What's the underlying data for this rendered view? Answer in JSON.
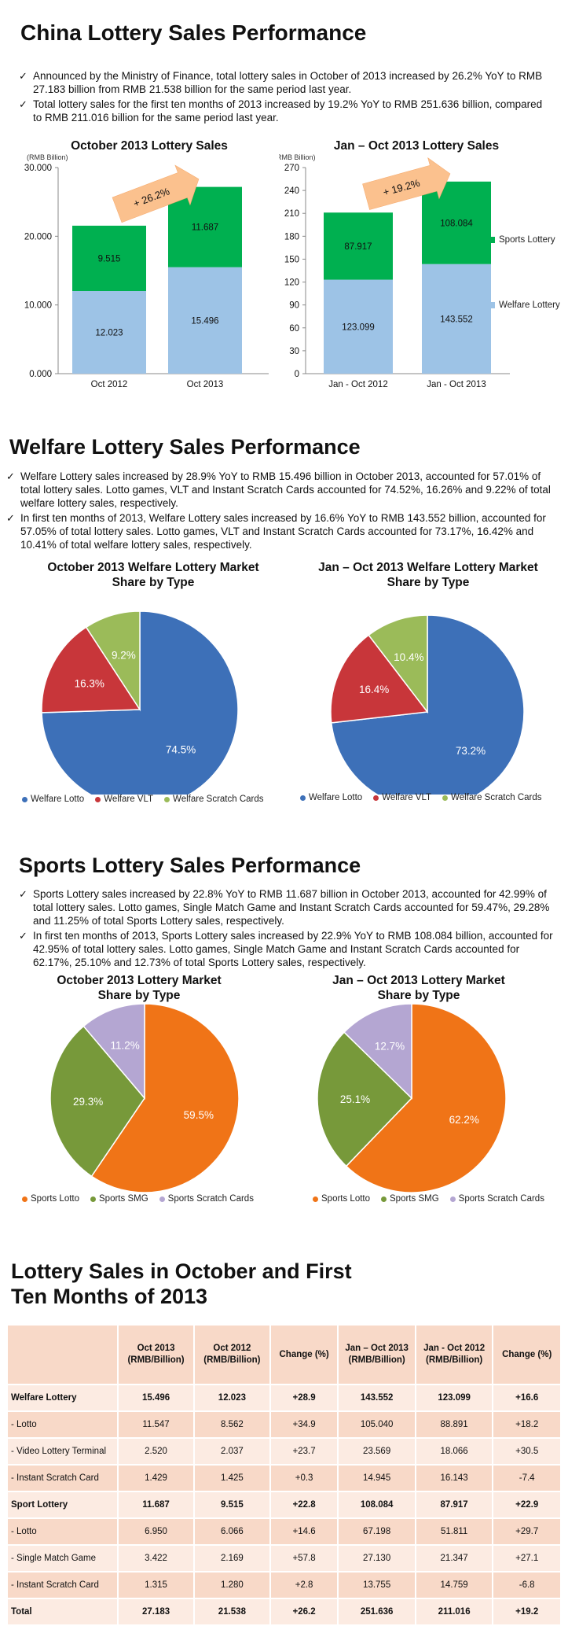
{
  "colors": {
    "sports_green": "#00b050",
    "welfare_blue": "#9dc3e6",
    "arrow_orange": "#fbc18e",
    "pie_blue": "#3d70b8",
    "pie_red": "#c8363a",
    "pie_green": "#9bbb59",
    "pie_orange": "#f07417",
    "pie_olive": "#77993a",
    "pie_lilac": "#b4a6d2",
    "table_header": "#f8d9c8"
  },
  "s1": {
    "title": "China Lottery Sales Performance",
    "bullets": [
      "Announced by the Ministry of Finance, total lottery sales in October of 2013 increased by 26.2% YoY to RMB 27.183 billion from RMB 21.538 billion for the same period last year.",
      "Total lottery sales for the first ten months of 2013 increased by 19.2% YoY to RMB 251.636 billion, compared to RMB 211.016 billion for the same period last year."
    ]
  },
  "s2": {
    "title": "Welfare Lottery Sales Performance",
    "bullets": [
      "Welfare Lottery sales increased by 28.9% YoY to RMB 15.496 billion in October 2013, accounted for 57.01% of total lottery sales. Lotto games, VLT and Instant Scratch Cards accounted for 74.52%, 16.26% and 9.22% of total welfare lottery sales, respectively.",
      "In first ten months of 2013, Welfare Lottery sales increased by 16.6% YoY to RMB 143.552 billion, accounted for 57.05% of total lottery sales. Lotto games, VLT and Instant Scratch Cards accounted for 73.17%, 16.42% and 10.41% of total welfare lottery sales, respectively."
    ]
  },
  "s3": {
    "title": "Sports Lottery Sales Performance",
    "bullets": [
      "Sports Lottery sales increased by 22.8% YoY to RMB 11.687 billion in October 2013, accounted for 42.99% of total lottery sales. Lotto games, Single Match Game and Instant Scratch Cards accounted for 59.47%, 29.28% and 11.25% of total Sports Lottery sales, respectively.",
      "In first ten months of 2013, Sports Lottery sales increased by 22.9% YoY to RMB 108.084 billion, accounted for 42.95% of total lottery sales. Lotto games, Single Match Game and Instant Scratch Cards accounted for 62.17%, 25.10% and 12.73% of total Sports Lottery sales, respectively."
    ]
  },
  "s4": {
    "title_line1": "Lottery Sales in October and First",
    "title_line2": "Ten Months of 2013"
  },
  "chart_data": [
    {
      "type": "bar",
      "stacked": true,
      "title": "October 2013 Lottery Sales",
      "ylabel": "(RMB Billion)",
      "categories": [
        "Oct 2012",
        "Oct 2013"
      ],
      "ylim": [
        0,
        30
      ],
      "yticks": [
        "0.000",
        "10.000",
        "20.000",
        "30.000"
      ],
      "series": [
        {
          "name": "Welfare Lottery",
          "values": [
            12.023,
            15.496
          ],
          "labels": [
            "12.023",
            "15.496"
          ],
          "color": "#9dc3e6"
        },
        {
          "name": "Sports Lottery",
          "values": [
            9.515,
            11.687
          ],
          "labels": [
            "9.515",
            "11.687"
          ],
          "color": "#00b050"
        }
      ],
      "annotation": "+ 26.2%",
      "legend": "none"
    },
    {
      "type": "bar",
      "stacked": true,
      "title": "Jan – Oct 2013 Lottery Sales",
      "ylabel": "(RMB Billion)",
      "categories": [
        "Jan - Oct 2012",
        "Jan - Oct 2013"
      ],
      "ylim": [
        0,
        270
      ],
      "yticks": [
        "0",
        "30",
        "60",
        "90",
        "120",
        "150",
        "180",
        "210",
        "240",
        "270"
      ],
      "series": [
        {
          "name": "Welfare Lottery",
          "values": [
            123.099,
            143.552
          ],
          "labels": [
            "123.099",
            "143.552"
          ],
          "color": "#9dc3e6"
        },
        {
          "name": "Sports Lottery",
          "values": [
            87.917,
            108.084
          ],
          "labels": [
            "87.917",
            "108.084"
          ],
          "color": "#00b050"
        }
      ],
      "annotation": "+ 19.2%",
      "legend": "right"
    },
    {
      "type": "pie",
      "title": "October 2013 Welfare Lottery Market Share by Type",
      "slices": [
        {
          "name": "Welfare Lotto",
          "value": 74.5,
          "label": "74.5%",
          "color": "#3d70b8"
        },
        {
          "name": "Welfare VLT",
          "value": 16.3,
          "label": "16.3%",
          "color": "#c8363a"
        },
        {
          "name": "Welfare Scratch Cards",
          "value": 9.2,
          "label": "9.2%",
          "color": "#9bbb59"
        }
      ],
      "legend": "bottom"
    },
    {
      "type": "pie",
      "title": "Jan – Oct 2013 Welfare Lottery Market Share by Type",
      "slices": [
        {
          "name": "Welfare Lotto",
          "value": 73.2,
          "label": "73.2%",
          "color": "#3d70b8"
        },
        {
          "name": "Welfare VLT",
          "value": 16.4,
          "label": "16.4%",
          "color": "#c8363a"
        },
        {
          "name": "Welfare Scratch Cards",
          "value": 10.4,
          "label": "10.4%",
          "color": "#9bbb59"
        }
      ],
      "legend": "bottom"
    },
    {
      "type": "pie",
      "title": "October 2013 Lottery Market Share by Type",
      "slices": [
        {
          "name": "Sports Lotto",
          "value": 59.5,
          "label": "59.5%",
          "color": "#f07417"
        },
        {
          "name": "Sports SMG",
          "value": 29.3,
          "label": "29.3%",
          "color": "#77993a"
        },
        {
          "name": "Sports Scratch Cards",
          "value": 11.2,
          "label": "11.2%",
          "color": "#b4a6d2"
        }
      ],
      "legend": "bottom"
    },
    {
      "type": "pie",
      "title": "Jan – Oct 2013 Lottery Market Share by Type",
      "slices": [
        {
          "name": "Sports Lotto",
          "value": 62.2,
          "label": "62.2%",
          "color": "#f07417"
        },
        {
          "name": "Sports SMG",
          "value": 25.1,
          "label": "25.1%",
          "color": "#77993a"
        },
        {
          "name": "Sports Scratch Cards",
          "value": 12.7,
          "label": "12.7%",
          "color": "#b4a6d2"
        }
      ],
      "legend": "bottom"
    },
    {
      "type": "table",
      "headers": [
        "",
        "Oct 2013 (RMB/Billion)",
        "Oct 2012 (RMB/Billion)",
        "Change (%)",
        "Jan – Oct 2013 (RMB/Billion)",
        "Jan - Oct 2012 (RMB/Billion)",
        "Change (%)"
      ],
      "rows": [
        {
          "bold": true,
          "cells": [
            "Welfare Lottery",
            "15.496",
            "12.023",
            "+28.9",
            "143.552",
            "123.099",
            "+16.6"
          ]
        },
        {
          "bold": false,
          "cells": [
            "- Lotto",
            "11.547",
            "8.562",
            "+34.9",
            "105.040",
            "88.891",
            "+18.2"
          ]
        },
        {
          "bold": false,
          "cells": [
            "- Video Lottery Terminal",
            "2.520",
            "2.037",
            "+23.7",
            "23.569",
            "18.066",
            "+30.5"
          ]
        },
        {
          "bold": false,
          "cells": [
            "- Instant Scratch Card",
            "1.429",
            "1.425",
            "+0.3",
            "14.945",
            "16.143",
            "-7.4"
          ]
        },
        {
          "bold": true,
          "cells": [
            "Sport Lottery",
            "11.687",
            "9.515",
            "+22.8",
            "108.084",
            "87.917",
            "+22.9"
          ]
        },
        {
          "bold": false,
          "cells": [
            "- Lotto",
            "6.950",
            "6.066",
            "+14.6",
            "67.198",
            "51.811",
            "+29.7"
          ]
        },
        {
          "bold": false,
          "cells": [
            "- Single Match Game",
            "3.422",
            "2.169",
            "+57.8",
            "27.130",
            "21.347",
            "+27.1"
          ]
        },
        {
          "bold": false,
          "cells": [
            "- Instant Scratch Card",
            "1.315",
            "1.280",
            "+2.8",
            "13.755",
            "14.759",
            "-6.8"
          ]
        },
        {
          "bold": true,
          "cells": [
            "Total",
            "27.183",
            "21.538",
            "+26.2",
            "251.636",
            "211.016",
            "+19.2"
          ]
        }
      ]
    }
  ]
}
